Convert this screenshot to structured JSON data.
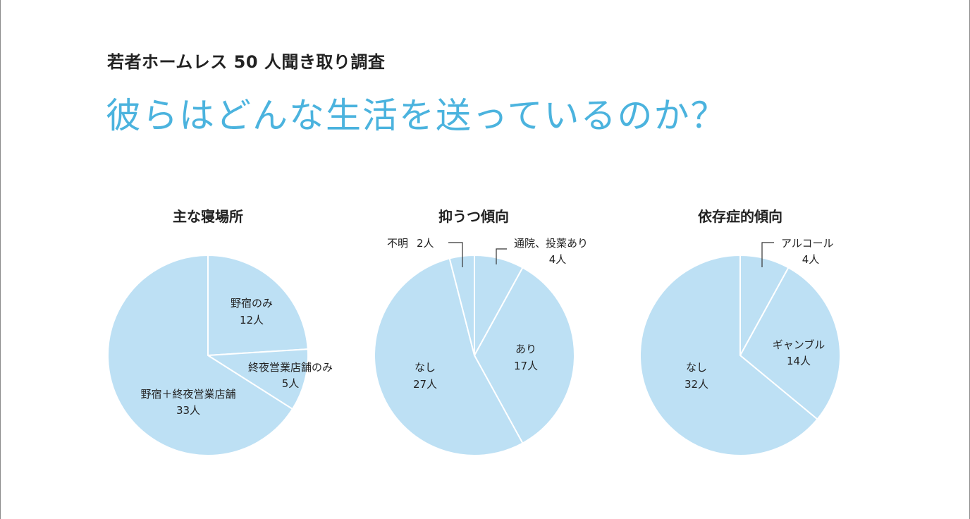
{
  "header": {
    "subtitle": "若者ホームレス 50 人聞き取り調査",
    "title": "彼らはどんな生活を送っているのか？"
  },
  "colors": {
    "title": "#4bb3de",
    "slice_fill": "#bde0f4",
    "slice_edge": "#ffffff"
  },
  "chart_data": [
    {
      "type": "pie",
      "title": "主な寝場所",
      "slices": [
        {
          "label": "野宿のみ",
          "value_label": "12人",
          "value": 12
        },
        {
          "label": "終夜営業店舗のみ",
          "value_label": "5人",
          "value": 5
        },
        {
          "label": "野宿＋終夜営業店舗",
          "value_label": "33人",
          "value": 33
        }
      ]
    },
    {
      "type": "pie",
      "title": "抑うつ傾向",
      "slices": [
        {
          "label": "通院、投薬あり",
          "value_label": "4人",
          "value": 4
        },
        {
          "label": "あり",
          "value_label": "17人",
          "value": 17
        },
        {
          "label": "なし",
          "value_label": "27人",
          "value": 27
        },
        {
          "label": "不明",
          "value_label": "2人",
          "value": 2
        }
      ]
    },
    {
      "type": "pie",
      "title": "依存症的傾向",
      "slices": [
        {
          "label": "アルコール",
          "value_label": "4人",
          "value": 4
        },
        {
          "label": "ギャンブル",
          "value_label": "14人",
          "value": 14
        },
        {
          "label": "なし",
          "value_label": "32人",
          "value": 32
        }
      ]
    }
  ]
}
